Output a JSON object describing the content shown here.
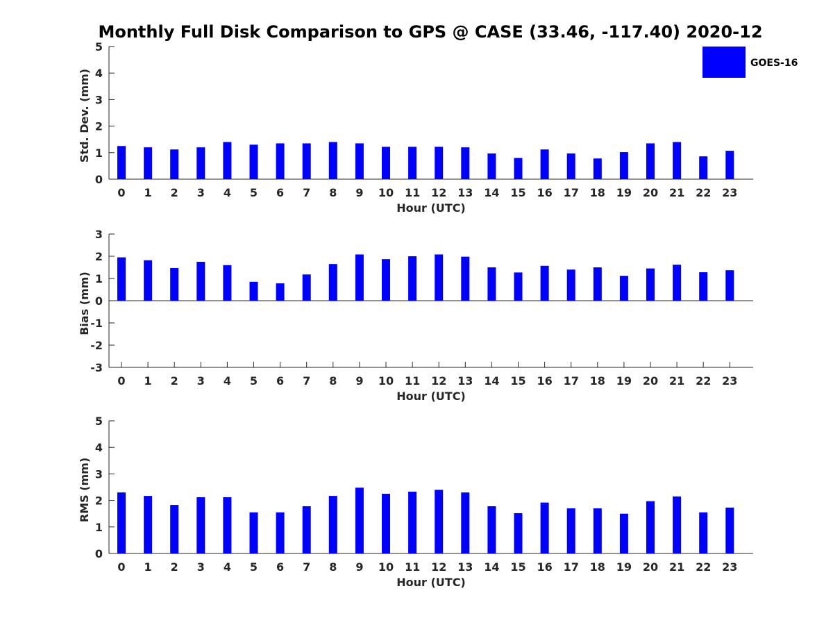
{
  "title": "Monthly Full Disk Comparison to GPS @ CASE (33.46, -117.40) 2020-12",
  "legend": {
    "label": "GOES-16",
    "color": "#0000ff"
  },
  "chart_data": [
    {
      "type": "bar",
      "xlabel": "Hour (UTC)",
      "ylabel": "Std. Dev. (mm)",
      "ylim": [
        0,
        5
      ],
      "yticks": [
        "0",
        "1",
        "2",
        "3",
        "4",
        "5"
      ],
      "categories": [
        "0",
        "1",
        "2",
        "3",
        "4",
        "5",
        "6",
        "7",
        "8",
        "9",
        "10",
        "11",
        "12",
        "13",
        "14",
        "15",
        "16",
        "17",
        "18",
        "19",
        "20",
        "21",
        "22",
        "23"
      ],
      "series": [
        {
          "name": "GOES-16",
          "color": "#0000ff",
          "values": [
            1.25,
            1.2,
            1.12,
            1.2,
            1.4,
            1.3,
            1.35,
            1.35,
            1.4,
            1.35,
            1.22,
            1.22,
            1.22,
            1.2,
            0.97,
            0.8,
            1.12,
            0.97,
            0.78,
            1.02,
            1.35,
            1.4,
            0.86,
            1.07
          ]
        }
      ],
      "legend": "top-right"
    },
    {
      "type": "bar",
      "xlabel": "Hour (UTC)",
      "ylabel": "Bias (mm)",
      "ylim": [
        -3,
        3
      ],
      "yticks": [
        "-3",
        "-2",
        "-1",
        "0",
        "1",
        "2",
        "3"
      ],
      "categories": [
        "0",
        "1",
        "2",
        "3",
        "4",
        "5",
        "6",
        "7",
        "8",
        "9",
        "10",
        "11",
        "12",
        "13",
        "14",
        "15",
        "16",
        "17",
        "18",
        "19",
        "20",
        "21",
        "22",
        "23"
      ],
      "series": [
        {
          "name": "GOES-16",
          "color": "#0000ff",
          "values": [
            1.95,
            1.82,
            1.47,
            1.75,
            1.6,
            0.85,
            0.78,
            1.18,
            1.65,
            2.08,
            1.87,
            2.0,
            2.08,
            1.98,
            1.5,
            1.27,
            1.57,
            1.4,
            1.5,
            1.12,
            1.45,
            1.62,
            1.28,
            1.37
          ]
        }
      ]
    },
    {
      "type": "bar",
      "xlabel": "Hour (UTC)",
      "ylabel": "RMS (mm)",
      "ylim": [
        0,
        5
      ],
      "yticks": [
        "0",
        "1",
        "2",
        "3",
        "4",
        "5"
      ],
      "categories": [
        "0",
        "1",
        "2",
        "3",
        "4",
        "5",
        "6",
        "7",
        "8",
        "9",
        "10",
        "11",
        "12",
        "13",
        "14",
        "15",
        "16",
        "17",
        "18",
        "19",
        "20",
        "21",
        "22",
        "23"
      ],
      "series": [
        {
          "name": "GOES-16",
          "color": "#0000ff",
          "values": [
            2.3,
            2.17,
            1.83,
            2.12,
            2.12,
            1.55,
            1.55,
            1.78,
            2.17,
            2.48,
            2.25,
            2.33,
            2.4,
            2.3,
            1.78,
            1.52,
            1.92,
            1.7,
            1.7,
            1.5,
            1.97,
            2.15,
            1.55,
            1.73
          ]
        }
      ]
    }
  ]
}
